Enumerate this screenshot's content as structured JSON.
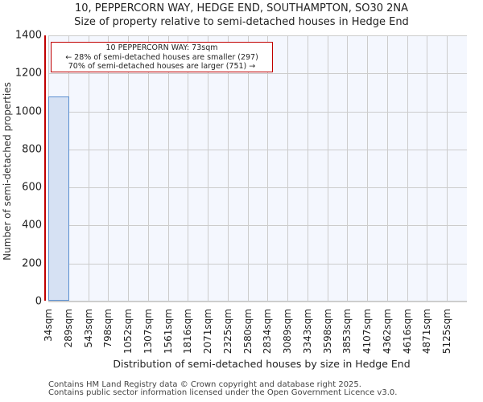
{
  "header": {
    "title_line1": "10, PEPPERCORN WAY, HEDGE END, SOUTHAMPTON, SO30 2NA",
    "title_line2": "Size of property relative to semi-detached houses in Hedge End"
  },
  "annotation": {
    "line1": "10 PEPPERCORN WAY: 73sqm",
    "line2": "← 28% of semi-detached houses are smaller (297)",
    "line3": "70% of semi-detached houses are larger (751) →"
  },
  "footer": {
    "line1": "Contains HM Land Registry data © Crown copyright and database right 2025.",
    "line2": "Contains public sector information licensed under the Open Government Licence v3.0."
  },
  "colors": {
    "bar_fill": "#d6e1f3",
    "bar_edge": "#5b8fd0",
    "marker": "#c00000",
    "plot_bg": "#f4f7fe",
    "grid": "#cccccc"
  },
  "chart_data": {
    "type": "bar",
    "title": "10, PEPPERCORN WAY, HEDGE END, SOUTHAMPTON, SO30 2NA\nSize of property relative to semi-detached houses in Hedge End",
    "xlabel": "Distribution of semi-detached houses by size in Hedge End",
    "ylabel": "Number of semi-detached properties",
    "categories": [
      "34sqm",
      "289sqm",
      "543sqm",
      "798sqm",
      "1052sqm",
      "1307sqm",
      "1561sqm",
      "1816sqm",
      "2071sqm",
      "2325sqm",
      "2580sqm",
      "2834sqm",
      "3089sqm",
      "3343sqm",
      "3598sqm",
      "3853sqm",
      "4107sqm",
      "4362sqm",
      "4616sqm",
      "4871sqm",
      "5125sqm"
    ],
    "values": [
      1075,
      0,
      0,
      0,
      0,
      0,
      0,
      0,
      0,
      0,
      0,
      0,
      0,
      0,
      0,
      0,
      0,
      0,
      0,
      0
    ],
    "yticks": [
      0,
      200,
      400,
      600,
      800,
      1000,
      1200,
      1400
    ],
    "ylim": [
      0,
      1400
    ],
    "grid": true,
    "marker": {
      "label": "10 PEPPERCORN WAY: 73sqm",
      "x_value": 73,
      "color": "#c00000"
    },
    "annotations": [
      "10 PEPPERCORN WAY: 73sqm",
      "← 28% of semi-detached houses are smaller (297)",
      "70% of semi-detached houses are larger (751) →"
    ],
    "legend": null
  }
}
